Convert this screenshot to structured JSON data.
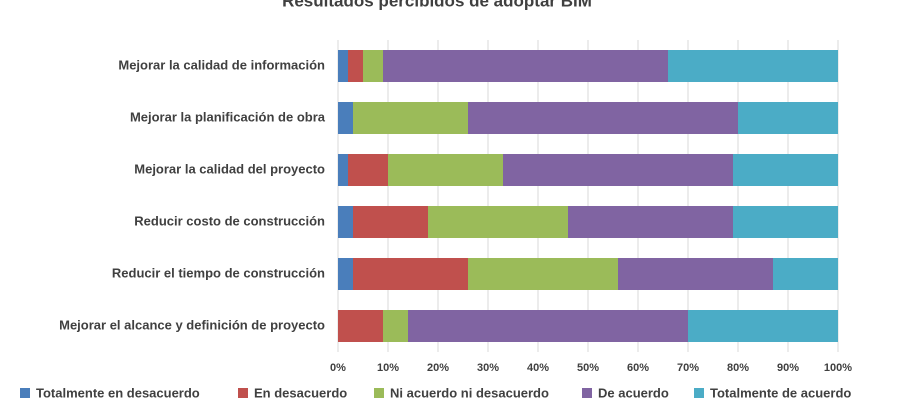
{
  "chart_data": {
    "type": "stacked-barh",
    "title": "Resultados percibidos de adoptar BIM",
    "categories": [
      "Mejorar la calidad de información",
      "Mejorar la planificación de obra",
      "Mejorar la calidad del proyecto",
      "Reducir costo de construcción",
      "Reducir el tiempo de construcción",
      "Mejorar el alcance y definición de proyecto"
    ],
    "series": [
      {
        "name": "Totalmente en desacuerdo",
        "color": "#4a7ebb",
        "values": [
          2,
          3,
          2,
          3,
          3,
          0
        ]
      },
      {
        "name": "En desacuerdo",
        "color": "#c0504d",
        "values": [
          3,
          0,
          8,
          15,
          23,
          9
        ]
      },
      {
        "name": "Ni acuerdo ni desacuerdo",
        "color": "#9bbb59",
        "values": [
          4,
          23,
          23,
          28,
          30,
          5
        ]
      },
      {
        "name": "De acuerdo",
        "color": "#8064a2",
        "values": [
          57,
          54,
          46,
          33,
          31,
          56
        ]
      },
      {
        "name": "Totalmente de acuerdo",
        "color": "#4bacc6",
        "values": [
          34,
          20,
          21,
          21,
          13,
          30
        ]
      }
    ],
    "xlim": [
      0,
      100
    ],
    "xticks": [
      {
        "value": 0,
        "label": "0%"
      },
      {
        "value": 10,
        "label": "10%"
      },
      {
        "value": 20,
        "label": "20%"
      },
      {
        "value": 30,
        "label": "30%"
      },
      {
        "value": 40,
        "label": "40%"
      },
      {
        "value": 50,
        "label": "50%"
      },
      {
        "value": 60,
        "label": "60%"
      },
      {
        "value": 70,
        "label": "70%"
      },
      {
        "value": 80,
        "label": "80%"
      },
      {
        "value": 90,
        "label": "90%"
      },
      {
        "value": 100,
        "label": "100%"
      }
    ],
    "grid": true
  }
}
